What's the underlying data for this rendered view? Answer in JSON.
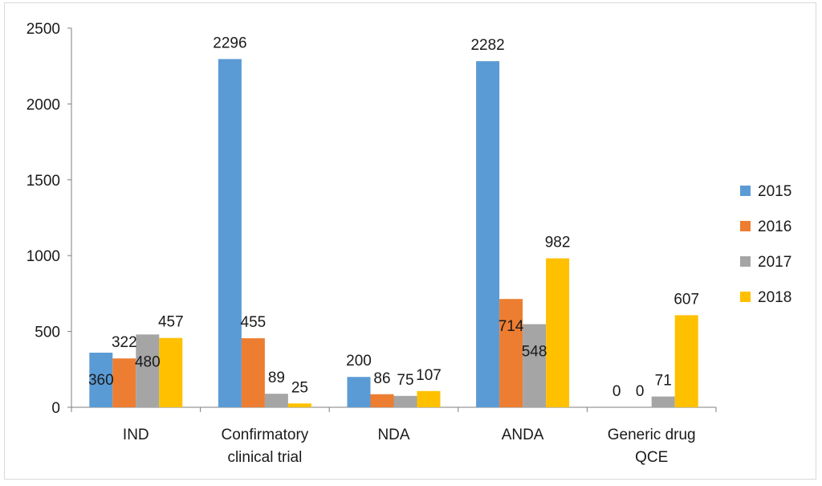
{
  "chart_data": {
    "type": "bar",
    "categories": [
      [
        "IND"
      ],
      [
        "Confirmatory",
        "clinical trial"
      ],
      [
        "NDA"
      ],
      [
        "ANDA"
      ],
      [
        "Generic drug",
        "QCE"
      ]
    ],
    "series": [
      {
        "name": "2015",
        "color": "#5b9bd5",
        "values": [
          360,
          2296,
          200,
          2282,
          0
        ]
      },
      {
        "name": "2016",
        "color": "#ed7d31",
        "values": [
          322,
          455,
          86,
          714,
          0
        ]
      },
      {
        "name": "2017",
        "color": "#a5a5a5",
        "values": [
          480,
          89,
          75,
          548,
          71
        ]
      },
      {
        "name": "2018",
        "color": "#ffc000",
        "values": [
          457,
          25,
          107,
          982,
          607
        ]
      }
    ],
    "yticks": [
      "0",
      "500",
      "1000",
      "1500",
      "2000",
      "2500"
    ],
    "ylim": [
      0,
      2500
    ],
    "legend_position": "right",
    "grid": false
  }
}
